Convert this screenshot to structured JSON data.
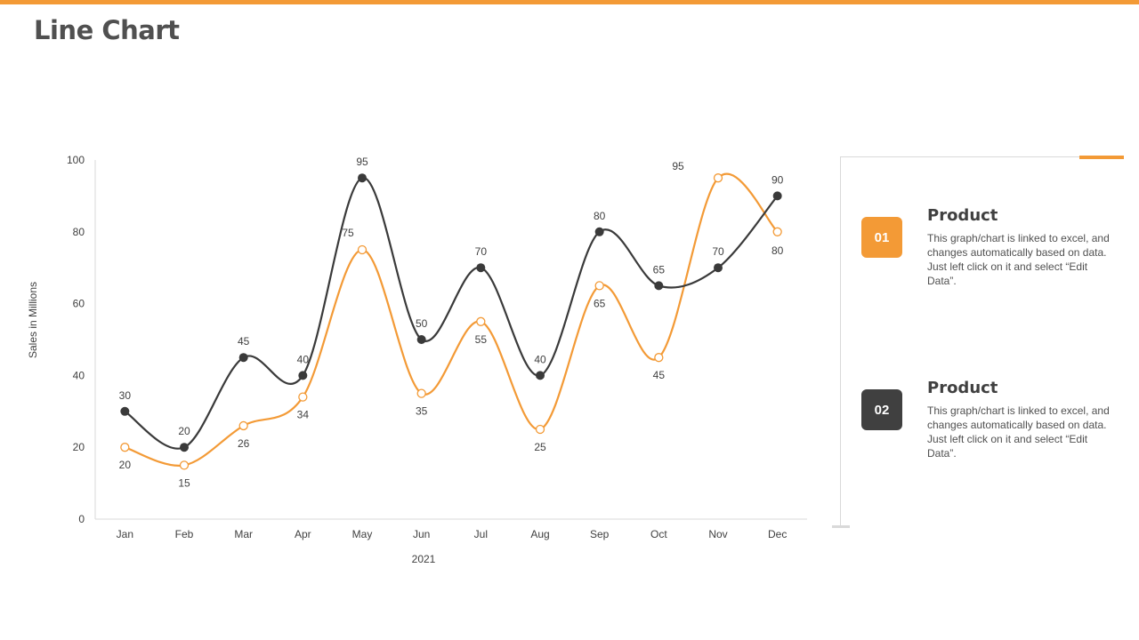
{
  "page": {
    "title": "Line Chart"
  },
  "legend": [
    {
      "number": "01",
      "title": "Product",
      "text": "This graph/chart is linked to excel, and changes automatically based on data. Just left click on it and select “Edit Data”.",
      "color": "#f39a36"
    },
    {
      "number": "02",
      "title": "Product",
      "text": "This graph/chart is linked to excel, and changes automatically based on data. Just left click on it and select “Edit Data”.",
      "color": "#404040"
    }
  ],
  "chart_data": {
    "type": "line",
    "title": "",
    "xlabel": "2021",
    "ylabel": "Sales in Millions",
    "ylim": [
      0,
      100
    ],
    "yticks": [
      0,
      20,
      40,
      60,
      80,
      100
    ],
    "grid": false,
    "categories": [
      "Jan",
      "Feb",
      "Mar",
      "Apr",
      "May",
      "Jun",
      "Jul",
      "Aug",
      "Sep",
      "Oct",
      "Nov",
      "Dec"
    ],
    "series": [
      {
        "values": [
          30,
          20,
          45,
          40,
          95,
          50,
          70,
          40,
          80,
          65,
          70,
          90
        ],
        "color": "#3a3a3a",
        "marker": "filled"
      },
      {
        "values": [
          20,
          15,
          26,
          34,
          75,
          35,
          55,
          25,
          65,
          45,
          95,
          80
        ],
        "color": "#f39a36",
        "marker": "hollow"
      }
    ]
  }
}
